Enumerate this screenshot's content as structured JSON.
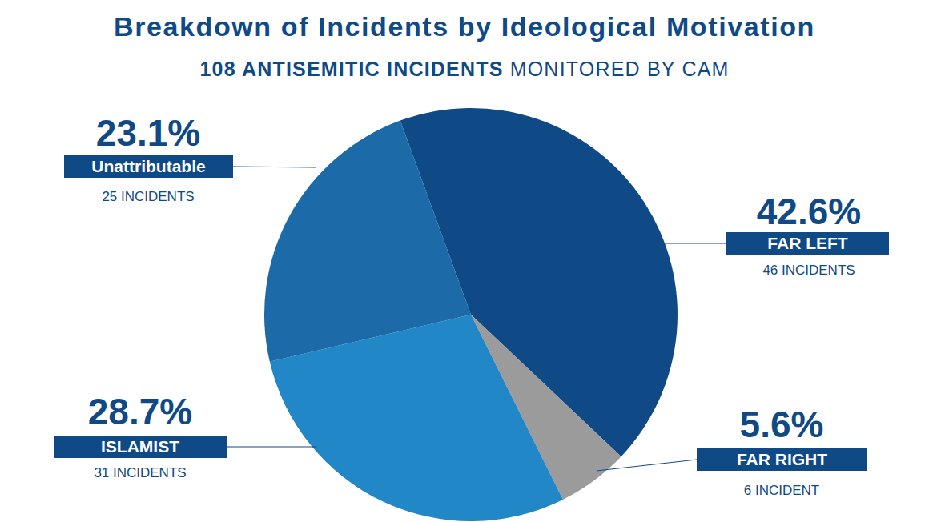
{
  "chart_data": {
    "type": "pie",
    "title": "Breakdown of Incidents by Ideological Motivation",
    "subtitle": [
      "108 ANTISEMITIC INCIDENTS",
      "MONITORED BY CAM"
    ],
    "categories": [
      "FAR LEFT",
      "FAR RIGHT",
      "ISLAMIST",
      "Unattributable"
    ],
    "values": [
      42.6,
      5.6,
      28.7,
      23.1
    ],
    "value_labels": [
      "42.6%",
      "5.6%",
      "28.7%",
      "23.1%"
    ],
    "count_labels": [
      "46 INCIDENTS",
      "6 INCIDENT",
      "31 INCIDENTS",
      "25 INCIDENTS"
    ],
    "colors": [
      "#0f4a87",
      "#9b9b9b",
      "#2187c6",
      "#1c6aa8"
    ],
    "data_labels": true
  }
}
